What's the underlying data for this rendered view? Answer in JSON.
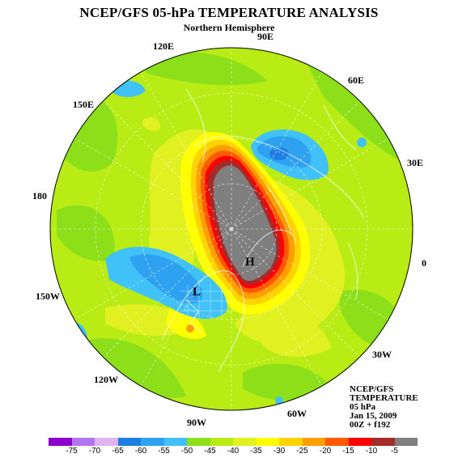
{
  "header": {
    "title": "NCEP/GFS 05-hPa TEMPERATURE ANALYSIS",
    "subtitle": "Northern Hemisphere"
  },
  "longitude_labels": [
    {
      "id": "90e",
      "text": "90E"
    },
    {
      "id": "120e",
      "text": "120E"
    },
    {
      "id": "60e",
      "text": "60E"
    },
    {
      "id": "150e",
      "text": "150E"
    },
    {
      "id": "30e",
      "text": "30E"
    },
    {
      "id": "180",
      "text": "180"
    },
    {
      "id": "0",
      "text": "0"
    },
    {
      "id": "150w",
      "text": "150W"
    },
    {
      "id": "30w",
      "text": "30W"
    },
    {
      "id": "120w",
      "text": "120W"
    },
    {
      "id": "60w",
      "text": "60W"
    },
    {
      "id": "90w",
      "text": "90W"
    }
  ],
  "pressure_centers": [
    {
      "id": "high",
      "text": "H"
    },
    {
      "id": "low",
      "text": "L"
    }
  ],
  "info_block": {
    "line1": "NCEP/GFS",
    "line2": "TEMPERATURE",
    "line3": "05 hPa",
    "line4": "Jan 15, 2009",
    "line5": "00Z + f192"
  },
  "colorbar": {
    "colors": [
      "#8b00cd",
      "#b476f0",
      "#e0b4f0",
      "#1e7ee6",
      "#2ea2f0",
      "#40c2f8",
      "#8ddf1a",
      "#b8ec14",
      "#e0f020",
      "#ffff00",
      "#ffd200",
      "#ff9e00",
      "#ff5a00",
      "#ff0000",
      "#a52a2a",
      "#7f7f7f"
    ],
    "ticks": [
      "-75",
      "-70",
      "-65",
      "-60",
      "-55",
      "-50",
      "-45",
      "-40",
      "-35",
      "-30",
      "-25",
      "-20",
      "-15",
      "-10",
      "-5"
    ]
  }
}
